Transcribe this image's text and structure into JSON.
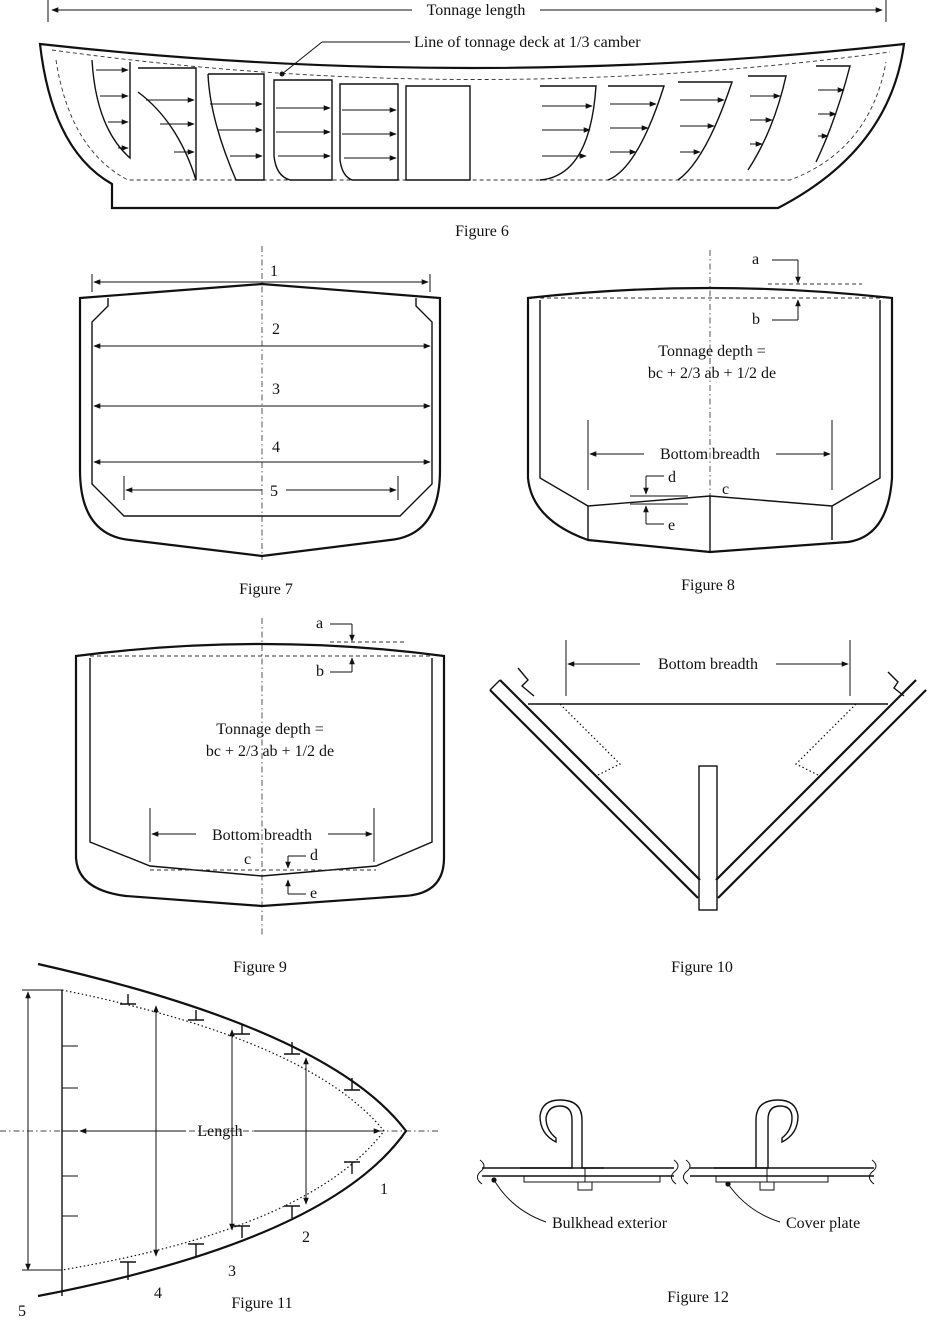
{
  "figures": {
    "fig6": {
      "caption": "Figure 6",
      "tonnage_length": "Tonnage length",
      "deck_note": "Line of tonnage deck at 1/3 camber"
    },
    "fig7": {
      "caption": "Figure 7",
      "numbers": [
        "1",
        "2",
        "3",
        "4",
        "5"
      ]
    },
    "fig8": {
      "caption": "Figure 8",
      "tonnage_depth_line1": "Tonnage depth =",
      "tonnage_depth_line2": "bc + 2/3 ab + 1/2 de",
      "bottom_breadth": "Bottom breadth",
      "letters": {
        "a": "a",
        "b": "b",
        "c": "c",
        "d": "d",
        "e": "e"
      }
    },
    "fig9": {
      "caption": "Figure 9",
      "tonnage_depth_line1": "Tonnage depth =",
      "tonnage_depth_line2": "bc + 2/3 ab + 1/2 de",
      "bottom_breadth": "Bottom breadth",
      "letters": {
        "a": "a",
        "b": "b",
        "c": "c",
        "d": "d",
        "e": "e"
      }
    },
    "fig10": {
      "caption": "Figure 10",
      "bottom_breadth": "Bottom breadth"
    },
    "fig11": {
      "caption": "Figure 11",
      "length": "Length",
      "numbers": [
        "1",
        "2",
        "3",
        "4",
        "5"
      ]
    },
    "fig12": {
      "caption": "Figure 12",
      "bulkhead_exterior": "Bulkhead exterior",
      "cover_plate": "Cover plate"
    }
  }
}
